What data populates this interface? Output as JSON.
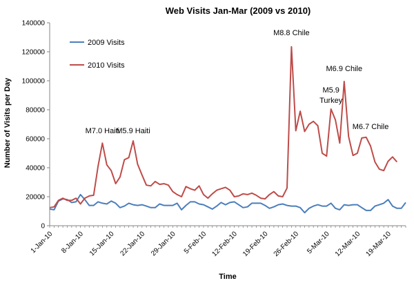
{
  "chart_data": {
    "type": "line",
    "title": "Web Visits Jan-Mar (2009 vs 2010)",
    "xlabel": "Time",
    "ylabel": "Number of Visits per Day",
    "ylim": [
      0,
      140000
    ],
    "yticks": [
      0,
      20000,
      40000,
      60000,
      80000,
      100000,
      120000,
      140000
    ],
    "ytick_labels": [
      "0",
      "20000",
      "40000",
      "60000",
      "80000",
      "100000",
      "120000",
      "140000"
    ],
    "xtick_labels": [
      "1-Jan-10",
      "8-Jan-10",
      "15-Jan-10",
      "22-Jan-10",
      "29-Jan-10",
      "5-Feb-10",
      "12-Feb-10",
      "19-Feb-10",
      "26-Feb-10",
      "5-Mar-10",
      "12-Mar-10",
      "19-Mar-10"
    ],
    "grid": false,
    "legend": "top-left",
    "series": [
      {
        "name": "2009 Visits",
        "color": "#4a7ebb",
        "values": [
          11500,
          11000,
          17000,
          18500,
          18000,
          16000,
          16500,
          21500,
          18000,
          14000,
          14000,
          16500,
          15500,
          15000,
          17000,
          15500,
          12500,
          13500,
          15500,
          14500,
          14000,
          14500,
          13500,
          12500,
          12500,
          15000,
          14000,
          14000,
          14000,
          15500,
          11000,
          14000,
          16500,
          16500,
          15000,
          14500,
          13000,
          11500,
          13500,
          16000,
          14500,
          16000,
          16500,
          14500,
          12500,
          13000,
          15500,
          15500,
          15500,
          14000,
          12000,
          13000,
          14500,
          15000,
          14000,
          13500,
          13500,
          12500,
          9000,
          12000,
          13500,
          14500,
          13500,
          13500,
          15500,
          12000,
          11000,
          14500,
          14000,
          14500,
          14500,
          12500,
          10500,
          10500,
          13500,
          14500,
          15500,
          18000,
          13500,
          12000,
          12000,
          16000
        ]
      },
      {
        "name": "2010 Visits",
        "color": "#be4b48",
        "values": [
          12500,
          13000,
          17500,
          19000,
          17500,
          17500,
          19000,
          15000,
          19000,
          20500,
          21000,
          41000,
          57000,
          42000,
          38000,
          29000,
          33500,
          45500,
          47000,
          58500,
          42500,
          35000,
          28000,
          27500,
          30500,
          28500,
          29000,
          28000,
          23500,
          21500,
          20000,
          27000,
          25500,
          24500,
          27500,
          21500,
          19000,
          22000,
          24500,
          25500,
          26500,
          24500,
          20000,
          20500,
          22000,
          21500,
          22500,
          21000,
          19000,
          18500,
          21500,
          23500,
          20500,
          20000,
          26000,
          123500,
          65500,
          79000,
          65000,
          70000,
          72000,
          69000,
          50000,
          48000,
          80500,
          73000,
          57000,
          99500,
          61500,
          48500,
          50000,
          60500,
          61000,
          55000,
          44000,
          39000,
          38000,
          44500,
          47500,
          44000
        ]
      }
    ],
    "annotations": [
      {
        "text": "M7.0 Haiti",
        "x_index": 12
      },
      {
        "text": "M5.9 Haiti",
        "x_index": 19
      },
      {
        "text": "M8.8 Chile",
        "x_index": 55
      },
      {
        "text": "M6.9 Chile",
        "x_index": 67
      },
      {
        "text": "M5.9",
        "x_index": 64
      },
      {
        "text": "Turkey",
        "x_index": 64
      },
      {
        "text": "M6.7 Chile",
        "x_index": 73
      }
    ]
  }
}
